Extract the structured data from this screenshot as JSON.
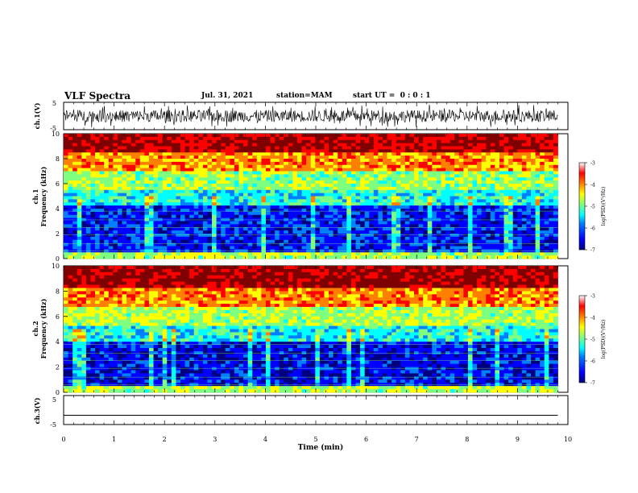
{
  "header": {
    "title": "VLF Spectra",
    "date": "Jul. 31, 2021",
    "station": "station=MAM",
    "start_time": "start UT =  0 : 0 : 1"
  },
  "chart_data": [
    {
      "type": "line",
      "panel": "ch1-waveform",
      "ylabel": "ch.1(V)",
      "ylim": [
        -5,
        5
      ],
      "yticks": [
        "5",
        "-5"
      ],
      "description_level": "dense broadband noise roughly between -3.5 and 4 V across the full record",
      "xlim": [
        0,
        10
      ]
    },
    {
      "type": "heatmap",
      "panel": "ch1-spectrogram",
      "ylabel_line1": "ch.1",
      "ylabel_line2": "Frequency (kHz)",
      "ylim": [
        0,
        10
      ],
      "yticks": [
        "0",
        "2",
        "4",
        "6",
        "8",
        "10"
      ],
      "xlim": [
        0,
        9.8
      ],
      "colorbar_label": "log(PSD)(V²/Hz)",
      "colorbar_range": [
        -7,
        -3
      ],
      "colorbar_ticks": [
        "-3",
        "-4",
        "-5",
        "-6",
        "-7"
      ],
      "bands_log_psd": [
        {
          "freq_khz": [
            0,
            0.5
          ],
          "value": -4.8
        },
        {
          "freq_khz": [
            0.5,
            4.2
          ],
          "value": -6.3
        },
        {
          "freq_khz": [
            4.2,
            5.5
          ],
          "value": -5.4
        },
        {
          "freq_khz": [
            5.5,
            7.0
          ],
          "value": -4.9
        },
        {
          "freq_khz": [
            7.0,
            8.5
          ],
          "value": -4.2
        },
        {
          "freq_khz": [
            8.5,
            10
          ],
          "value": -3.4
        }
      ]
    },
    {
      "type": "heatmap",
      "panel": "ch2-spectrogram",
      "ylabel_line1": "ch.2",
      "ylabel_line2": "Frequency (kHz)",
      "ylim": [
        0,
        10
      ],
      "yticks": [
        "0",
        "2",
        "4",
        "6",
        "8",
        "10"
      ],
      "xlim": [
        0,
        9.8
      ],
      "colorbar_label": "log(PSD)(V²/Hz)",
      "colorbar_range": [
        -7,
        -3
      ],
      "colorbar_ticks": [
        "-3",
        "-4",
        "-5",
        "-6",
        "-7"
      ],
      "bands_log_psd": [
        {
          "freq_khz": [
            0,
            0.5
          ],
          "value": -4.8
        },
        {
          "freq_khz": [
            0.5,
            4.0
          ],
          "value": -6.4
        },
        {
          "freq_khz": [
            4.0,
            5.3
          ],
          "value": -5.4
        },
        {
          "freq_khz": [
            5.3,
            6.8
          ],
          "value": -4.8
        },
        {
          "freq_khz": [
            6.8,
            8.3
          ],
          "value": -4.1
        },
        {
          "freq_khz": [
            8.3,
            10
          ],
          "value": -3.3
        }
      ]
    },
    {
      "type": "line",
      "panel": "ch3-waveform",
      "ylabel": "ch.3(V)",
      "ylim": [
        -5,
        5
      ],
      "yticks": [
        "5",
        "-5"
      ],
      "x": [
        0,
        9.8
      ],
      "y": [
        -1.8,
        -1.8
      ],
      "xlim": [
        0,
        10
      ]
    }
  ],
  "xaxis": {
    "label": "Time (min)",
    "ticks": [
      "0",
      "1",
      "2",
      "3",
      "4",
      "5",
      "6",
      "7",
      "8",
      "9",
      "10"
    ],
    "xlim": [
      0,
      10
    ]
  },
  "colors": {
    "jet": [
      "#00007f",
      "#0000ff",
      "#007fff",
      "#00ffff",
      "#7fff7f",
      "#ffff00",
      "#ff7f00",
      "#ff0000",
      "#7f0000"
    ]
  }
}
